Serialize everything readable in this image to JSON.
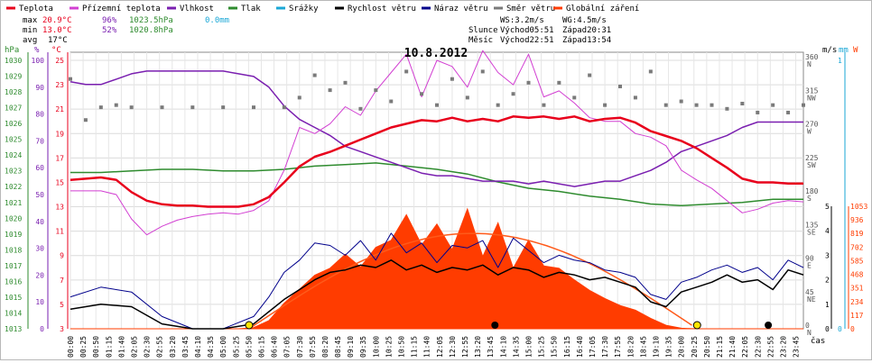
{
  "header": {
    "legend": [
      {
        "label": "Teplota",
        "color": "#e8001c"
      },
      {
        "label": "Přízemní teplota",
        "color": "#d23fd2"
      },
      {
        "label": "Vlhkost",
        "color": "#7a1fb0"
      },
      {
        "label": "Tlak",
        "color": "#2e8b2e"
      },
      {
        "label": "Srážky",
        "color": "#1aa7d6"
      },
      {
        "label": "Rychlost větru",
        "color": "#000000"
      },
      {
        "label": "Náraz větru",
        "color": "#00008b"
      },
      {
        "label": "Směr větru",
        "color": "#7a7a7a"
      },
      {
        "label": "Globální záření",
        "color": "#ff3c00"
      }
    ],
    "stats": {
      "max_label": "max",
      "max_temp": "20.9°C",
      "max_hum": "96%",
      "max_press": "1023.5hPa",
      "max_rain": "0.0mm",
      "min_label": "min",
      "min_temp": "13.0°C",
      "min_hum": "52%",
      "min_press": "1020.8hPa",
      "avg_label": "avg",
      "avg_temp": "17°C",
      "ws": "WS:3.2m/s",
      "wg": "WG:4.5m/s",
      "sun_label": "Slunce",
      "sun_rise": "Východ05:51",
      "sun_set": "Západ20:31",
      "moon_label": "Měsíc",
      "moon_rise": "Východ22:51",
      "moon_set": "Západ13:54"
    },
    "date": "10.8.2012",
    "time_unit": "čas"
  },
  "chart_data": {
    "type": "line",
    "title": "10.8.2012",
    "time_ticks": [
      "00:00",
      "00:25",
      "00:50",
      "01:15",
      "01:40",
      "02:05",
      "02:30",
      "02:55",
      "03:20",
      "03:45",
      "04:10",
      "04:35",
      "05:00",
      "05:25",
      "05:50",
      "06:15",
      "06:40",
      "07:05",
      "07:30",
      "07:55",
      "08:20",
      "08:45",
      "09:10",
      "09:35",
      "10:00",
      "10:25",
      "10:50",
      "11:15",
      "11:40",
      "12:05",
      "12:30",
      "12:55",
      "13:20",
      "13:45",
      "14:10",
      "14:35",
      "15:00",
      "15:25",
      "15:50",
      "16:15",
      "16:40",
      "17:05",
      "17:30",
      "17:55",
      "18:20",
      "18:45",
      "19:10",
      "19:35",
      "20:00",
      "20:25",
      "20:50",
      "21:15",
      "21:40",
      "22:05",
      "22:30",
      "22:55",
      "23:20",
      "23:45"
    ],
    "axes": {
      "pressure": {
        "unit": "hPa",
        "ticks": [
          1013,
          1014,
          1015,
          1016,
          1017,
          1018,
          1019,
          1020,
          1021,
          1022,
          1023,
          1024,
          1025,
          1026,
          1027,
          1028,
          1029,
          1030
        ],
        "color": "#2e8b2e"
      },
      "humidity": {
        "unit": "%",
        "ticks": [
          0,
          10,
          20,
          30,
          40,
          50,
          60,
          70,
          80,
          90,
          100
        ],
        "color": "#7a1fb0"
      },
      "temperature": {
        "unit": "°C",
        "ticks": [
          3,
          5,
          7,
          9,
          11,
          13,
          15,
          17,
          19,
          21,
          23,
          25
        ],
        "color": "#e8001c"
      },
      "direction": {
        "ticks": [
          {
            "v": 0,
            "t": "0"
          },
          {
            "v": 45,
            "t": "45"
          },
          {
            "v": 90,
            "t": "90"
          },
          {
            "v": 135,
            "t": "135"
          },
          {
            "v": 180,
            "t": "180"
          },
          {
            "v": 225,
            "t": "225"
          },
          {
            "v": 270,
            "t": "270"
          },
          {
            "v": 315,
            "t": "315"
          },
          {
            "v": 360,
            "t": "360"
          }
        ],
        "letters": [
          "N",
          "NE",
          "E",
          "SE",
          "S",
          "SW",
          "W",
          "NW",
          "N"
        ]
      },
      "wind": {
        "unit": "m/s",
        "ticks": [
          0,
          1,
          2,
          3,
          4,
          5
        ]
      },
      "rain": {
        "unit": "mm",
        "ticks": [
          0,
          1
        ]
      },
      "radiation": {
        "unit": "W",
        "ticks": [
          0,
          117,
          234,
          351,
          468,
          585,
          702,
          819,
          936,
          1053
        ]
      }
    },
    "series": [
      {
        "name": "Teplota",
        "unit": "°C",
        "x": [
          0,
          0.5,
          1,
          1.5,
          2,
          2.5,
          3,
          3.5,
          4,
          4.5,
          5,
          5.5,
          6,
          6.5,
          7,
          7.5,
          8,
          8.5,
          9,
          9.5,
          10,
          10.5,
          11,
          11.5,
          12,
          12.5,
          13,
          13.5,
          14,
          14.5,
          15,
          15.5,
          16,
          16.5,
          17,
          17.5,
          18,
          18.5,
          19,
          19.5,
          20,
          20.5,
          21,
          21.5,
          22,
          22.5,
          23,
          23.5,
          24
        ],
        "values": [
          15.2,
          15.3,
          15.4,
          15.2,
          14.2,
          13.5,
          13.2,
          13.1,
          13.1,
          13.0,
          13.0,
          13.0,
          13.2,
          13.8,
          15.0,
          16.3,
          17.1,
          17.5,
          18.0,
          18.5,
          19.0,
          19.5,
          19.8,
          20.1,
          20.0,
          20.3,
          20.0,
          20.2,
          20.0,
          20.4,
          20.3,
          20.4,
          20.2,
          20.4,
          20.0,
          20.2,
          20.3,
          19.9,
          19.2,
          18.8,
          18.4,
          17.8,
          17.0,
          16.2,
          15.3,
          15.0,
          15.0,
          14.9,
          14.9
        ]
      },
      {
        "name": "Přízemní teplota",
        "unit": "°C",
        "x": [
          0,
          0.5,
          1,
          1.5,
          2,
          2.5,
          3,
          3.5,
          4,
          4.5,
          5,
          5.5,
          6,
          6.5,
          7,
          7.5,
          8,
          8.5,
          9,
          9.5,
          10,
          10.5,
          11,
          11.5,
          12,
          12.5,
          13,
          13.5,
          14,
          14.5,
          15,
          15.5,
          16,
          16.5,
          17,
          17.5,
          18,
          18.5,
          19,
          19.5,
          20,
          20.5,
          21,
          21.5,
          22,
          22.5,
          23,
          23.5,
          24
        ],
        "values": [
          14.3,
          14.3,
          14.3,
          14.0,
          12.0,
          10.7,
          11.4,
          11.9,
          12.2,
          12.4,
          12.5,
          12.4,
          12.7,
          13.5,
          16.0,
          19.5,
          19.0,
          19.8,
          21.2,
          20.5,
          22.5,
          24.0,
          25.5,
          22.0,
          25.0,
          24.5,
          22.8,
          25.8,
          24.0,
          23.0,
          25.5,
          22.0,
          22.5,
          21.5,
          20.3,
          20.0,
          20.0,
          19.0,
          18.7,
          18.0,
          16.0,
          15.2,
          14.5,
          13.5,
          12.5,
          12.8,
          13.3,
          13.5,
          13.4
        ]
      },
      {
        "name": "Vlhkost",
        "unit": "%",
        "x": [
          0,
          0.5,
          1,
          1.5,
          2,
          2.5,
          3,
          3.5,
          4,
          4.5,
          5,
          5.5,
          6,
          6.5,
          7,
          7.5,
          8,
          8.5,
          9,
          9.5,
          10,
          10.5,
          11,
          11.5,
          12,
          12.5,
          13,
          13.5,
          14,
          14.5,
          15,
          15.5,
          16,
          16.5,
          17,
          17.5,
          18,
          18.5,
          19,
          19.5,
          20,
          20.5,
          21,
          21.5,
          22,
          22.5,
          23,
          23.5,
          24
        ],
        "values": [
          92,
          91,
          91,
          93,
          95,
          96,
          96,
          96,
          96,
          96,
          96,
          95,
          94,
          90,
          83,
          78,
          75,
          72,
          68,
          66,
          64,
          62,
          60,
          58,
          57,
          57,
          56,
          55,
          55,
          55,
          54,
          55,
          54,
          53,
          54,
          55,
          55,
          57,
          59,
          62,
          66,
          68,
          70,
          72,
          75,
          77,
          77,
          77,
          77
        ]
      },
      {
        "name": "Tlak",
        "unit": "hPa",
        "x": [
          0,
          1,
          2,
          3,
          4,
          5,
          6,
          7,
          8,
          9,
          10,
          11,
          12,
          13,
          14,
          15,
          16,
          17,
          18,
          19,
          20,
          21,
          22,
          23,
          24
        ],
        "values": [
          1022.9,
          1022.9,
          1023.0,
          1023.1,
          1023.1,
          1023.0,
          1023.0,
          1023.1,
          1023.3,
          1023.4,
          1023.5,
          1023.3,
          1023.1,
          1022.8,
          1022.3,
          1021.9,
          1021.7,
          1021.4,
          1021.2,
          1020.9,
          1020.8,
          1020.9,
          1021.0,
          1021.2,
          1021.2
        ]
      },
      {
        "name": "Srážky",
        "unit": "mm",
        "x": [
          0,
          24
        ],
        "values": [
          0,
          0
        ]
      },
      {
        "name": "Rychlost větru",
        "unit": "m/s",
        "x": [
          0,
          1,
          2,
          3,
          4,
          5,
          6,
          6.5,
          7,
          7.5,
          8,
          8.5,
          9,
          9.5,
          10,
          10.5,
          11,
          11.5,
          12,
          12.5,
          13,
          13.5,
          14,
          14.5,
          15,
          15.5,
          16,
          16.5,
          17,
          17.5,
          18,
          18.5,
          19,
          19.5,
          20,
          20.5,
          21,
          21.5,
          22,
          22.5,
          23,
          23.5,
          24
        ],
        "values": [
          0.8,
          1.0,
          0.9,
          0.2,
          0.0,
          0.0,
          0.2,
          0.7,
          1.2,
          1.6,
          2.0,
          2.3,
          2.4,
          2.6,
          2.5,
          2.8,
          2.4,
          2.6,
          2.3,
          2.5,
          2.4,
          2.6,
          2.2,
          2.5,
          2.4,
          2.1,
          2.3,
          2.2,
          2.0,
          2.1,
          1.9,
          1.7,
          1.1,
          0.9,
          1.5,
          1.7,
          1.9,
          2.2,
          1.9,
          2.0,
          1.6,
          2.4,
          2.2
        ]
      },
      {
        "name": "Náraz větru",
        "unit": "m/s",
        "x": [
          0,
          1,
          2,
          3,
          4,
          5,
          6,
          6.5,
          7,
          7.5,
          8,
          8.5,
          9,
          9.5,
          10,
          10.5,
          11,
          11.5,
          12,
          12.5,
          13,
          13.5,
          14,
          14.5,
          15,
          15.5,
          16,
          16.5,
          17,
          17.5,
          18,
          18.5,
          19,
          19.5,
          20,
          20.5,
          21,
          21.5,
          22,
          22.5,
          23,
          23.5,
          24
        ],
        "values": [
          1.3,
          1.7,
          1.5,
          0.5,
          0.0,
          0.0,
          0.5,
          1.3,
          2.3,
          2.8,
          3.5,
          3.4,
          3.0,
          3.6,
          2.8,
          3.9,
          3.1,
          3.5,
          2.7,
          3.4,
          3.3,
          3.6,
          2.5,
          3.7,
          3.2,
          2.7,
          3.0,
          2.8,
          2.7,
          2.4,
          2.3,
          2.1,
          1.4,
          1.2,
          1.9,
          2.1,
          2.4,
          2.6,
          2.3,
          2.5,
          2.0,
          2.8,
          2.5
        ]
      },
      {
        "name": "Směr větru",
        "unit": "°",
        "x": [
          0,
          0.5,
          1,
          1.5,
          2,
          3,
          4,
          5,
          6,
          7,
          7.5,
          8,
          8.5,
          9,
          9.5,
          10,
          10.5,
          11,
          11.5,
          12,
          12.5,
          13,
          13.5,
          14,
          14.5,
          15,
          15.5,
          16,
          16.5,
          17,
          17.5,
          18,
          18.5,
          19,
          19.5,
          20,
          20.5,
          21,
          21.5,
          22,
          22.5,
          23,
          23.5,
          24
        ],
        "values": [
          335,
          280,
          297,
          300,
          297,
          297,
          297,
          297,
          297,
          297,
          310,
          340,
          320,
          330,
          295,
          320,
          305,
          345,
          315,
          300,
          335,
          310,
          345,
          300,
          315,
          330,
          300,
          330,
          310,
          340,
          300,
          325,
          310,
          345,
          300,
          305,
          300,
          300,
          295,
          302,
          290,
          300,
          290,
          300
        ]
      },
      {
        "name": "Globální záření",
        "unit": "W",
        "x": [
          0,
          5.5,
          6,
          6.5,
          7,
          7.5,
          8,
          8.5,
          9,
          9.5,
          10,
          10.5,
          11,
          11.5,
          12,
          12.5,
          13,
          13.5,
          14,
          14.5,
          15,
          15.5,
          16,
          16.5,
          17,
          17.5,
          18,
          18.5,
          19,
          19.5,
          20,
          20.5,
          24
        ],
        "values": [
          0,
          0,
          10,
          70,
          220,
          340,
          460,
          520,
          640,
          530,
          700,
          760,
          980,
          720,
          900,
          680,
          1030,
          620,
          910,
          520,
          760,
          540,
          520,
          420,
          330,
          260,
          200,
          160,
          90,
          30,
          5,
          0,
          0
        ]
      }
    ],
    "theoretical_radiation_max": 820,
    "markers": [
      {
        "type": "sun_rise",
        "x": 5.85
      },
      {
        "type": "moon_set",
        "x": 13.9
      },
      {
        "type": "sun_set",
        "x": 20.52
      },
      {
        "type": "moon_rise",
        "x": 22.85
      }
    ],
    "grid": true,
    "legend": "top"
  }
}
